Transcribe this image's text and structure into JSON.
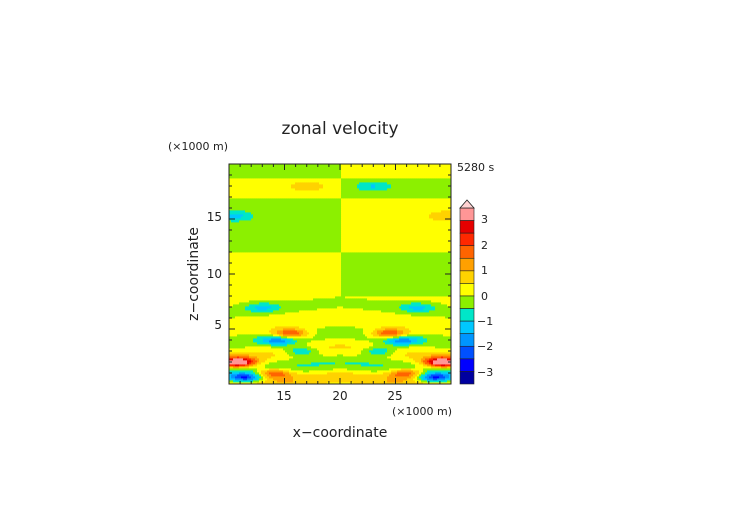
{
  "chart_data": {
    "type": "heatmap",
    "title": "zonal velocity",
    "xlabel": "x−coordinate",
    "ylabel": "z−coordinate",
    "x_unit": "(×1000 m)",
    "y_unit": "(×1000 m)",
    "time_label": "5280 s",
    "xlim": [
      10,
      30
    ],
    "ylim": [
      0,
      20
    ],
    "xticks": [
      "15",
      "20",
      "25"
    ],
    "yticks": [
      "5",
      "10",
      "15"
    ],
    "colorbar": {
      "ticks": [
        "3",
        "2",
        "1",
        "0",
        "−1",
        "−2",
        "−3"
      ],
      "levels": [
        -3.5,
        -3.0,
        -2.5,
        -2.0,
        -1.5,
        -1.0,
        -0.5,
        0.0,
        0.5,
        1.0,
        1.5,
        2.0,
        2.5,
        3.0,
        3.5
      ],
      "colors": [
        "#0000a0",
        "#0000ff",
        "#0050ff",
        "#0096ff",
        "#00c8ff",
        "#00e6c8",
        "#8cf000",
        "#ffff00",
        "#ffd200",
        "#ffa000",
        "#ff6400",
        "#ff2800",
        "#e60000",
        "#ff9696"
      ],
      "extend": "max"
    },
    "series": [
      {
        "x": 10.8,
        "z": 2.0,
        "value": 3.8
      },
      {
        "x": 29.2,
        "z": 2.0,
        "value": 3.8
      },
      {
        "x": 15.5,
        "z": 4.6,
        "value": 2.3
      },
      {
        "x": 24.5,
        "z": 4.6,
        "value": 2.3
      },
      {
        "x": 14.5,
        "z": 4.0,
        "value": -1.8
      },
      {
        "x": 25.5,
        "z": 4.0,
        "value": -1.8
      },
      {
        "x": 13.0,
        "z": 7.0,
        "value": -1.1
      },
      {
        "x": 27.0,
        "z": 7.0,
        "value": -1.1
      },
      {
        "x": 14.0,
        "z": 1.0,
        "value": 2.2
      },
      {
        "x": 26.0,
        "z": 1.0,
        "value": 2.2
      },
      {
        "x": 11.5,
        "z": 0.6,
        "value": -2.6
      },
      {
        "x": 28.5,
        "z": 0.6,
        "value": -2.6
      },
      {
        "x": 16.5,
        "z": 3.0,
        "value": -1.4
      },
      {
        "x": 23.5,
        "z": 3.0,
        "value": -1.4
      },
      {
        "x": 17.0,
        "z": 18.0,
        "value": 0.8
      },
      {
        "x": 23.0,
        "z": 18.0,
        "value": -0.9
      },
      {
        "x": 10.5,
        "z": 15.3,
        "value": -1.0
      },
      {
        "x": 29.5,
        "z": 15.3,
        "value": 0.8
      }
    ]
  }
}
